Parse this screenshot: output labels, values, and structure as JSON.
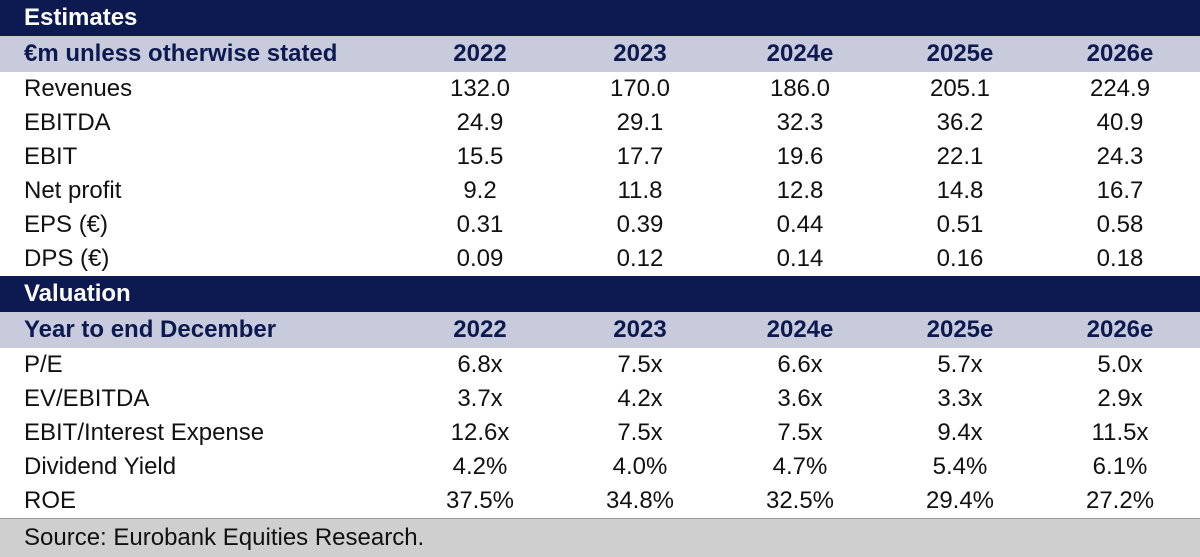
{
  "sections": [
    {
      "title": "Estimates",
      "header": [
        "€m unless otherwise stated",
        "2022",
        "2023",
        "2024e",
        "2025e",
        "2026e"
      ],
      "rows": [
        [
          "Revenues",
          "132.0",
          "170.0",
          "186.0",
          "205.1",
          "224.9"
        ],
        [
          "EBITDA",
          "24.9",
          "29.1",
          "32.3",
          "36.2",
          "40.9"
        ],
        [
          "EBIT",
          "15.5",
          "17.7",
          "19.6",
          "22.1",
          "24.3"
        ],
        [
          "Net profit",
          "9.2",
          "11.8",
          "12.8",
          "14.8",
          "16.7"
        ],
        [
          "EPS (€)",
          "0.31",
          "0.39",
          "0.44",
          "0.51",
          "0.58"
        ],
        [
          "DPS (€)",
          "0.09",
          "0.12",
          "0.14",
          "0.16",
          "0.18"
        ]
      ]
    },
    {
      "title": "Valuation",
      "header": [
        "Year to end December",
        "2022",
        "2023",
        "2024e",
        "2025e",
        "2026e"
      ],
      "rows": [
        [
          "P/E",
          "6.8x",
          "7.5x",
          "6.6x",
          "5.7x",
          "5.0x"
        ],
        [
          "EV/EBITDA",
          "3.7x",
          "4.2x",
          "3.6x",
          "3.3x",
          "2.9x"
        ],
        [
          "EBIT/Interest Expense",
          "12.6x",
          "7.5x",
          "7.5x",
          "9.4x",
          "11.5x"
        ],
        [
          "Dividend Yield",
          "4.2%",
          "4.0%",
          "4.7%",
          "5.4%",
          "6.1%"
        ],
        [
          "ROE",
          "37.5%",
          "34.8%",
          "32.5%",
          "29.4%",
          "27.2%"
        ]
      ]
    }
  ],
  "source": "Source: Eurobank Equities Research.",
  "colors": {
    "section_bg": "#0d1a52",
    "header_bg": "#c7cbdb",
    "source_bg": "#cfcfcf"
  }
}
